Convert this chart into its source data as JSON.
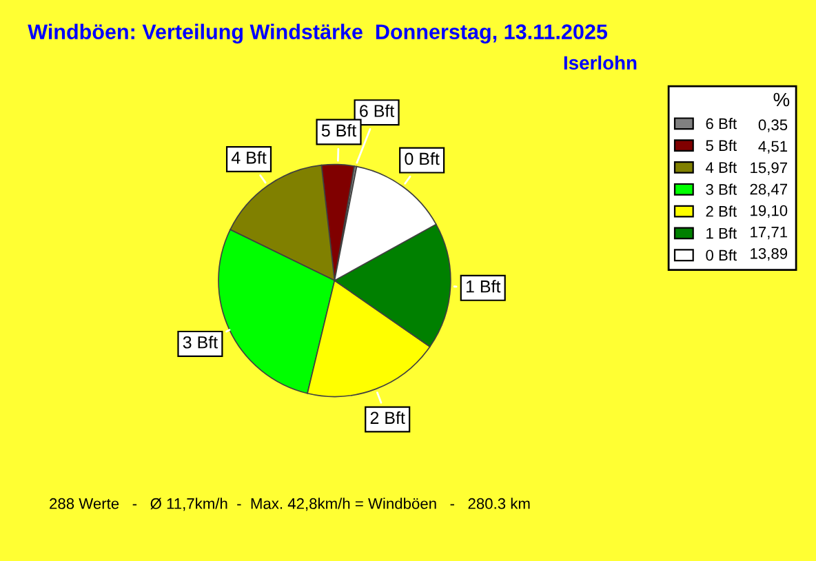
{
  "chart_data": {
    "type": "pie",
    "title": "Windböen: Verteilung Windstärke  Donnerstag, 13.11.2025",
    "subtitle": "Iserlohn",
    "categories": [
      "6 Bft",
      "5 Bft",
      "4 Bft",
      "3 Bft",
      "2 Bft",
      "1 Bft",
      "0 Bft"
    ],
    "values": [
      0.35,
      4.51,
      15.97,
      28.47,
      19.1,
      17.71,
      13.89
    ],
    "value_labels": [
      "0,35",
      "4,51",
      "15,97",
      "28,47",
      "19,10",
      "17,71",
      "13,89"
    ],
    "colors": [
      "#808080",
      "#800000",
      "#808000",
      "#00ff00",
      "#ffff00",
      "#008000",
      "#ffffff"
    ],
    "legend_title": "%",
    "legend": "top right",
    "annotations": [
      "288 Werte   -   Ø 11,7km/h  -  Max. 42,8km/h = Windböen   -   280.3 km"
    ]
  }
}
